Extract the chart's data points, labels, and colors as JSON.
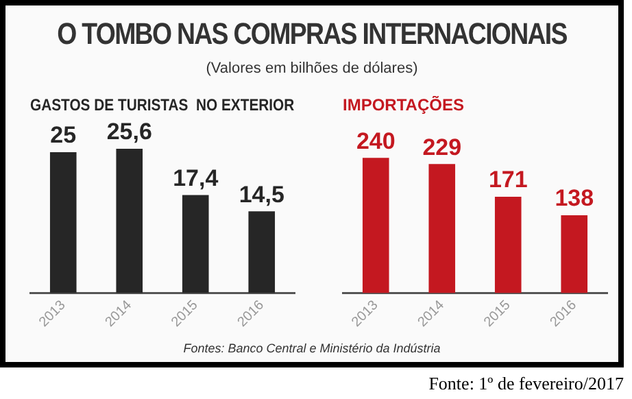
{
  "chart_data": [
    {
      "type": "other",
      "title": "O TOMBO NAS COMPRAS INTERNACIONAIS",
      "subtitle": "(Valores em bilhões de dólares)",
      "annotations": [
        "Fontes: Banco Central e Ministério da Indústria",
        "Fonte: 1º de fevereiro/2017"
      ]
    },
    {
      "type": "bar",
      "title": "GASTOS DE TURISTAS  NO EXTERIOR",
      "categories": [
        "2013",
        "2014",
        "2015",
        "2016"
      ],
      "values": [
        25,
        25.6,
        17.4,
        14.5
      ],
      "value_labels": [
        "25",
        "25,6",
        "17,4",
        "14,5"
      ],
      "color": "#262626",
      "tick_labels": "x"
    },
    {
      "type": "bar",
      "title": "IMPORTAÇÕES",
      "categories": [
        "2013",
        "2014",
        "2015",
        "2016"
      ],
      "values": [
        240,
        229,
        171,
        138
      ],
      "value_labels": [
        "240",
        "229",
        "171",
        "138"
      ],
      "color": "#c41820",
      "tick_labels": "x"
    }
  ]
}
